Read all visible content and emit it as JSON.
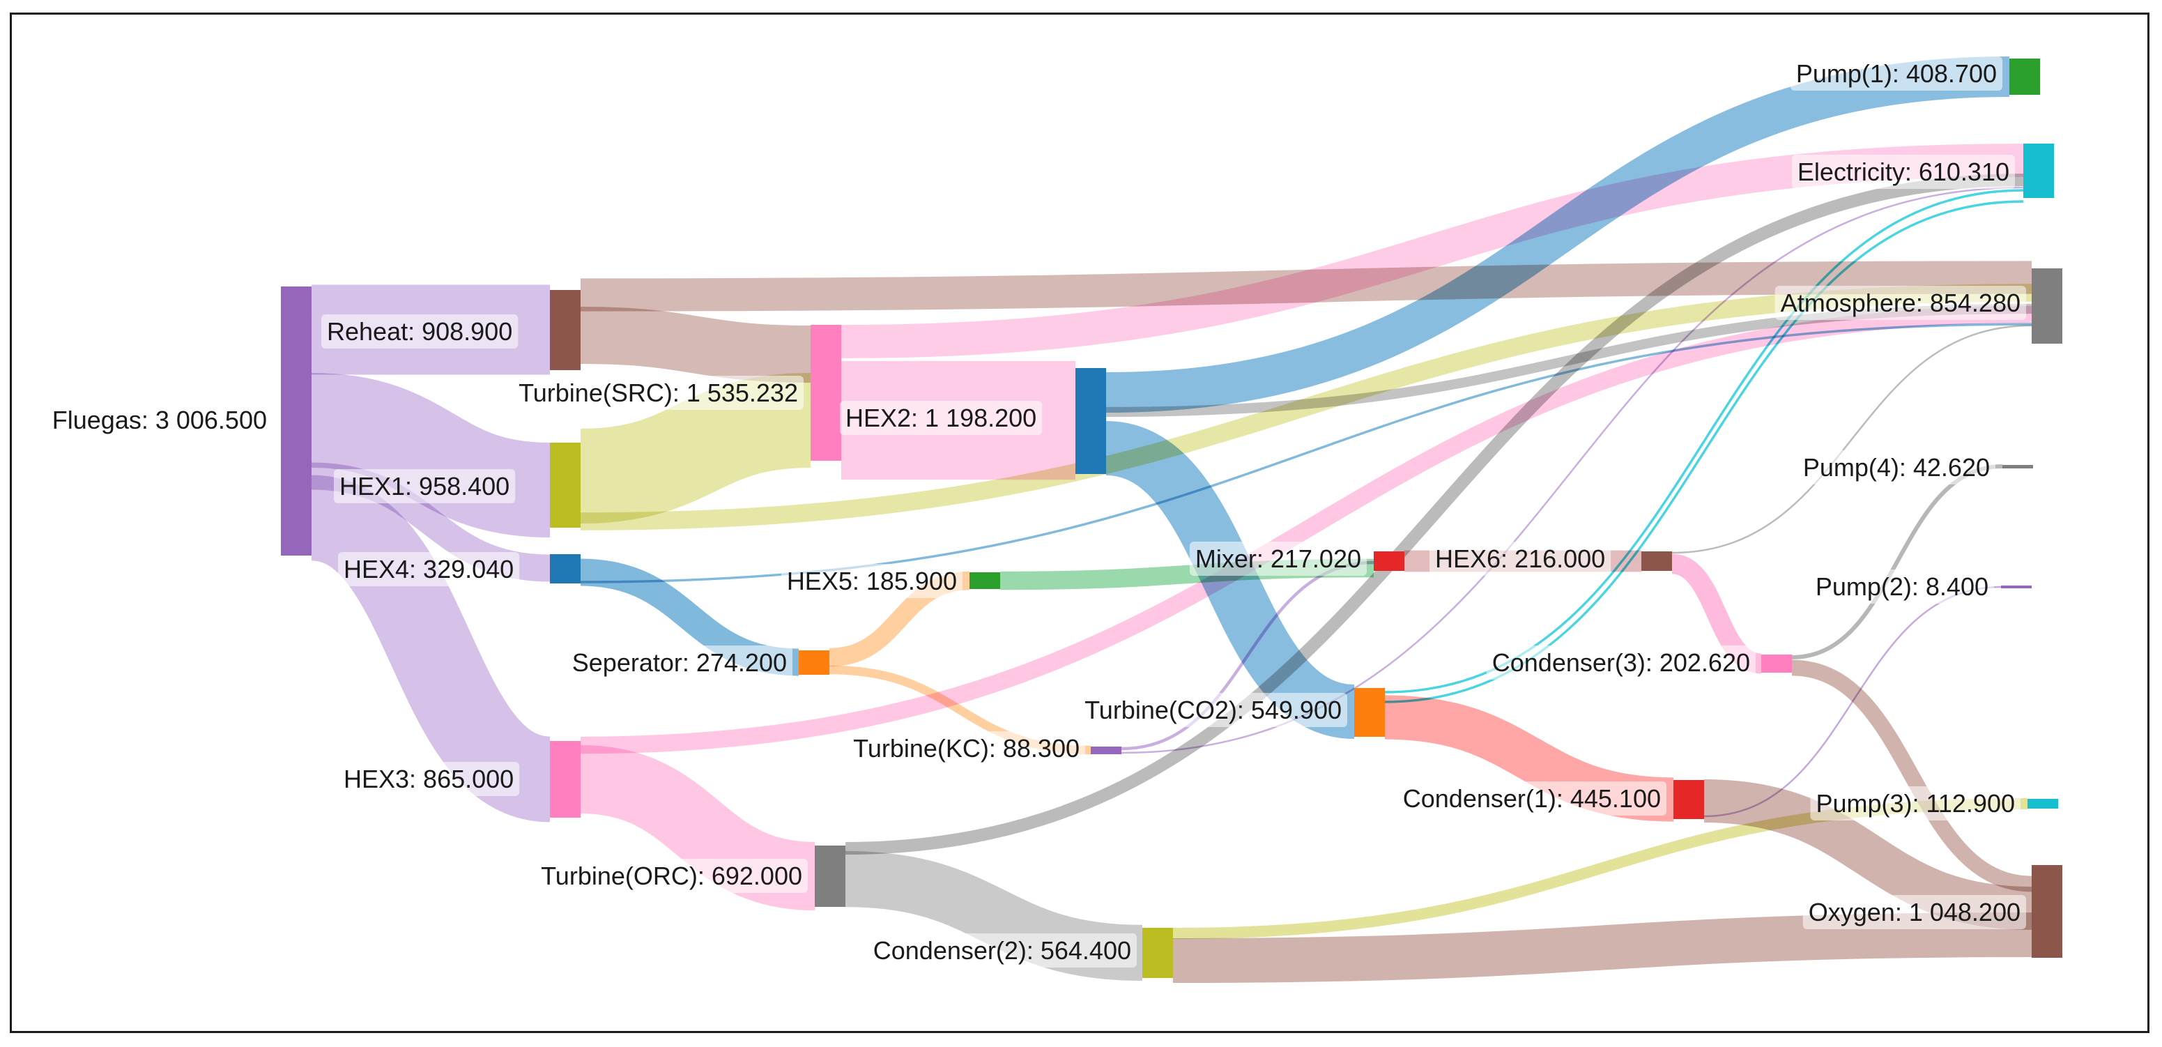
{
  "chart_data": {
    "type": "sankey",
    "title": "",
    "nodes": [
      {
        "id": "fluegas",
        "label": "Fluegas: 3 006.500",
        "value": 3006.5,
        "color": "#9467bd"
      },
      {
        "id": "reheat",
        "label": "Reheat: 908.900",
        "value": 908.9,
        "color": "#8c564b"
      },
      {
        "id": "hex1",
        "label": "HEX1: 958.400",
        "value": 958.4,
        "color": "#bcbd22"
      },
      {
        "id": "hex4",
        "label": "HEX4: 329.040",
        "value": 329.04,
        "color": "#1f77b4"
      },
      {
        "id": "hex3",
        "label": "HEX3: 865.000",
        "value": 865.0,
        "color": "#ff7fbf"
      },
      {
        "id": "turbine_src",
        "label": "Turbine(SRC): 1 535.232",
        "value": 1535.232,
        "color": "#ff7fbf"
      },
      {
        "id": "hex2",
        "label": "HEX2: 1 198.200",
        "value": 1198.2,
        "color": "#1f77b4"
      },
      {
        "id": "seperator",
        "label": "Seperator: 274.200",
        "value": 274.2,
        "color": "#ff7f0e"
      },
      {
        "id": "hex5",
        "label": "HEX5: 185.900",
        "value": 185.9,
        "color": "#2ca02c"
      },
      {
        "id": "turbine_kc",
        "label": "Turbine(KC): 88.300",
        "value": 88.3,
        "color": "#9467bd"
      },
      {
        "id": "turbine_orc",
        "label": "Turbine(ORC): 692.000",
        "value": 692.0,
        "color": "#7f7f7f"
      },
      {
        "id": "condenser2",
        "label": "Condenser(2): 564.400",
        "value": 564.4,
        "color": "#bcbd22"
      },
      {
        "id": "mixer",
        "label": "Mixer: 217.020",
        "value": 217.02,
        "color": "#e62728"
      },
      {
        "id": "hex6",
        "label": "HEX6: 216.000",
        "value": 216.0,
        "color": "#8c564b"
      },
      {
        "id": "turbine_co2",
        "label": "Turbine(CO2): 549.900",
        "value": 549.9,
        "color": "#ff7f0e"
      },
      {
        "id": "condenser1",
        "label": "Condenser(1): 445.100",
        "value": 445.1,
        "color": "#e62728"
      },
      {
        "id": "condenser3",
        "label": "Condenser(3): 202.620",
        "value": 202.62,
        "color": "#ff7fbf"
      },
      {
        "id": "pump1",
        "label": "Pump(1): 408.700",
        "value": 408.7,
        "color": "#2ca02c"
      },
      {
        "id": "electricity",
        "label": "Electricity: 610.310",
        "value": 610.31,
        "color": "#17becf"
      },
      {
        "id": "atmosphere",
        "label": "Atmosphere: 854.280",
        "value": 854.28,
        "color": "#7f7f7f"
      },
      {
        "id": "pump4",
        "label": "Pump(4): 42.620",
        "value": 42.62,
        "color": "#7f7f7f"
      },
      {
        "id": "pump2",
        "label": "Pump(2): 8.400",
        "value": 8.4,
        "color": "#9467bd"
      },
      {
        "id": "pump3",
        "label": "Pump(3): 112.900",
        "value": 112.9,
        "color": "#17becf"
      },
      {
        "id": "oxygen",
        "label": "Oxygen: 1 048.200",
        "value": 1048.2,
        "color": "#8c564b"
      }
    ],
    "links": [
      {
        "source": "fluegas",
        "target": "reheat",
        "value": 908.9
      },
      {
        "source": "fluegas",
        "target": "hex1",
        "value": 958.4
      },
      {
        "source": "fluegas",
        "target": "hex4",
        "value": 274.2
      },
      {
        "source": "fluegas",
        "target": "hex3",
        "value": 865.0
      },
      {
        "source": "reheat",
        "target": "turbine_src",
        "value": 576.8
      },
      {
        "source": "reheat",
        "target": "atmosphere",
        "value": 332.1
      },
      {
        "source": "hex1",
        "target": "turbine_src",
        "value": 958.4
      },
      {
        "source": "hex1",
        "target": "atmosphere",
        "value": 180.0
      },
      {
        "source": "hex4",
        "target": "seperator",
        "value": 274.2
      },
      {
        "source": "hex4",
        "target": "atmosphere",
        "value": 20.0
      },
      {
        "source": "turbine_src",
        "target": "hex2",
        "value": 1198.2
      },
      {
        "source": "turbine_src",
        "target": "electricity",
        "value": 337.0
      },
      {
        "source": "hex3",
        "target": "turbine_orc",
        "value": 692.0
      },
      {
        "source": "hex3",
        "target": "atmosphere",
        "value": 173.0
      },
      {
        "source": "seperator",
        "target": "hex5",
        "value": 185.9
      },
      {
        "source": "seperator",
        "target": "turbine_kc",
        "value": 88.3
      },
      {
        "source": "hex2",
        "target": "pump1",
        "value": 408.7
      },
      {
        "source": "hex2",
        "target": "atmosphere",
        "value": 100.0
      },
      {
        "source": "hex2",
        "target": "turbine_co2",
        "value": 549.9
      },
      {
        "source": "hex5",
        "target": "mixer",
        "value": 185.9
      },
      {
        "source": "turbine_kc",
        "target": "mixer",
        "value": 31.1
      },
      {
        "source": "turbine_kc",
        "target": "electricity",
        "value": 8.0
      },
      {
        "source": "turbine_orc",
        "target": "condenser2",
        "value": 564.4
      },
      {
        "source": "turbine_orc",
        "target": "electricity",
        "value": 127.6
      },
      {
        "source": "mixer",
        "target": "hex6",
        "value": 216.0
      },
      {
        "source": "hex6",
        "target": "condenser3",
        "value": 202.6
      },
      {
        "source": "hex6",
        "target": "atmosphere",
        "value": 13.4
      },
      {
        "source": "turbine_co2",
        "target": "condenser1",
        "value": 445.1
      },
      {
        "source": "turbine_co2",
        "target": "electricity",
        "value": 20.0
      },
      {
        "source": "turbine_co2",
        "target": "electricity",
        "value": 20.0
      },
      {
        "source": "condenser1",
        "target": "oxygen",
        "value": 436.7
      },
      {
        "source": "condenser1",
        "target": "pump2",
        "value": 8.4
      },
      {
        "source": "condenser3",
        "target": "pump4",
        "value": 42.6
      },
      {
        "source": "condenser3",
        "target": "oxygen",
        "value": 160.0
      },
      {
        "source": "condenser2",
        "target": "pump3",
        "value": 112.9
      },
      {
        "source": "condenser2",
        "target": "oxygen",
        "value": 451.5
      }
    ]
  }
}
